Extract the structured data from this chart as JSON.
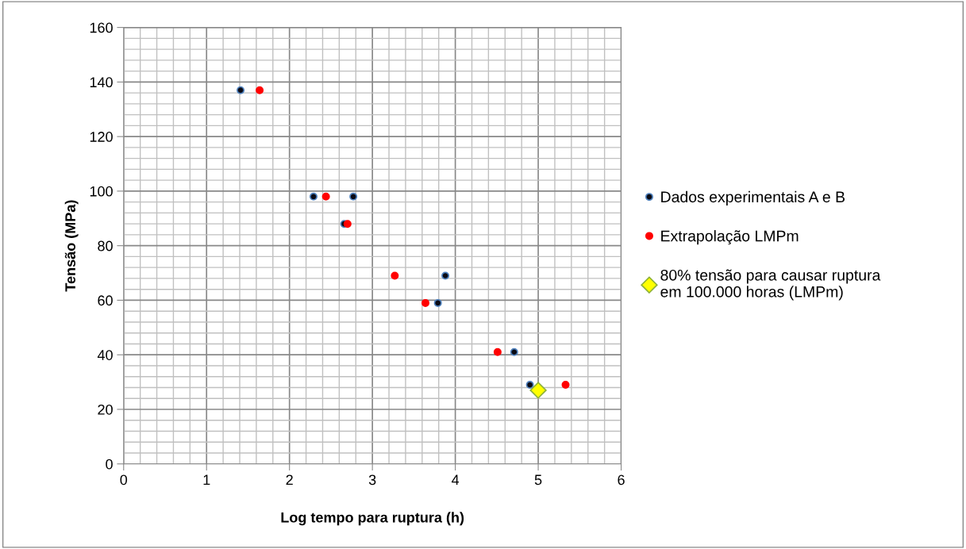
{
  "chart_data": {
    "type": "scatter",
    "xlabel": "Log tempo para ruptura (h)",
    "ylabel": "Tensão (MPa)",
    "xlim": [
      0,
      6
    ],
    "xticks": [
      0,
      1,
      2,
      3,
      4,
      5,
      6
    ],
    "ylim": [
      0,
      160
    ],
    "yticks": [
      0,
      20,
      40,
      60,
      80,
      100,
      120,
      140,
      160
    ],
    "grid": true,
    "legend": "right",
    "series": [
      {
        "name": "Dados experimentais A e B",
        "color": "#0a0a14",
        "marker": "circle",
        "x": [
          1.41,
          2.29,
          2.77,
          2.66,
          3.88,
          3.79,
          4.71,
          4.9
        ],
        "values": [
          137,
          98,
          98,
          88,
          69,
          59,
          41,
          29
        ]
      },
      {
        "name": "Extrapolação LMPm",
        "color": "#ff0000",
        "marker": "circle",
        "x": [
          1.64,
          2.44,
          2.7,
          3.27,
          3.64,
          4.51,
          5.33
        ],
        "values": [
          137,
          98,
          88,
          69,
          59,
          41,
          29
        ]
      },
      {
        "name": "80% tensão para causar ruptura\nem 100.000 horas (LMPm)",
        "color": "#ffff00",
        "marker": "diamond",
        "x": [
          5.0
        ],
        "values": [
          27
        ]
      }
    ]
  }
}
